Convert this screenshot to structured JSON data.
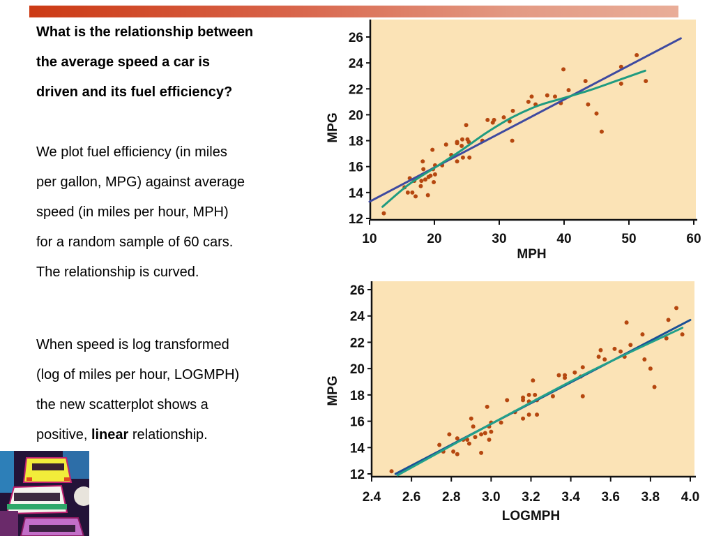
{
  "slide": {
    "question_lines": [
      "What is the relationship between",
      "the average speed a car is",
      "driven and its fuel efficiency?"
    ],
    "paragraph1_lines": [
      "We plot fuel efficiency (in miles",
      "per gallon, MPG) against average",
      "speed (in miles per hour, MPH)",
      "for a random sample of 60 cars.",
      "The relationship is curved."
    ],
    "paragraph2_lines": [
      "When speed is log transformed",
      "(log of miles per hour, LOGMPH)",
      "the new scatterplot shows a"
    ],
    "paragraph2_last": {
      "prefix": "positive, ",
      "bold": "linear",
      "suffix": " relationship."
    },
    "image_alt": "car-traffic-illustration"
  },
  "colors": {
    "plot_bg": "#fbe3b6",
    "point": "#b5470f",
    "linear_fit": "#3e4aa0",
    "curve_fit": "#1f9b80",
    "log_linear_fit": "#1a4f96",
    "log_curve_fit": "#22a08a"
  },
  "chart_data": [
    {
      "type": "scatter",
      "title": "",
      "xlabel": "MPH",
      "ylabel": "MPG",
      "xlim": [
        10,
        60
      ],
      "ylim": [
        12,
        26
      ],
      "xticks": [
        "10",
        "20",
        "30",
        "40",
        "50",
        "60"
      ],
      "yticks": [
        "12",
        "14",
        "16",
        "18",
        "20",
        "22",
        "24",
        "26"
      ],
      "grid": false,
      "points": [
        [
          12.2,
          12.4
        ],
        [
          15.4,
          14.4
        ],
        [
          15.9,
          14.0
        ],
        [
          16.2,
          15.1
        ],
        [
          16.6,
          14.0
        ],
        [
          16.9,
          14.9
        ],
        [
          17.1,
          13.7
        ],
        [
          17.9,
          14.5
        ],
        [
          18.0,
          14.9
        ],
        [
          18.2,
          16.4
        ],
        [
          18.3,
          15.8
        ],
        [
          18.6,
          15.0
        ],
        [
          19.0,
          13.8
        ],
        [
          19.1,
          15.2
        ],
        [
          19.4,
          15.3
        ],
        [
          19.7,
          17.3
        ],
        [
          19.8,
          15.8
        ],
        [
          19.9,
          14.8
        ],
        [
          20.1,
          15.4
        ],
        [
          20.1,
          16.1
        ],
        [
          21.2,
          16.1
        ],
        [
          21.8,
          17.7
        ],
        [
          22.6,
          16.9
        ],
        [
          23.5,
          17.9
        ],
        [
          23.5,
          17.8
        ],
        [
          23.5,
          16.4
        ],
        [
          24.2,
          17.6
        ],
        [
          24.3,
          18.1
        ],
        [
          24.4,
          16.7
        ],
        [
          24.9,
          19.2
        ],
        [
          25.1,
          18.1
        ],
        [
          25.3,
          17.9
        ],
        [
          25.4,
          16.7
        ],
        [
          27.4,
          18.0
        ],
        [
          28.2,
          19.6
        ],
        [
          29.0,
          19.4
        ],
        [
          29.2,
          19.6
        ],
        [
          30.7,
          19.8
        ],
        [
          31.6,
          19.5
        ],
        [
          32.0,
          18.0
        ],
        [
          32.1,
          20.3
        ],
        [
          34.5,
          21.0
        ],
        [
          35.0,
          21.4
        ],
        [
          35.6,
          20.8
        ],
        [
          37.4,
          21.5
        ],
        [
          38.6,
          21.4
        ],
        [
          39.5,
          20.9
        ],
        [
          39.9,
          23.5
        ],
        [
          40.7,
          21.9
        ],
        [
          43.3,
          22.6
        ],
        [
          43.7,
          20.8
        ],
        [
          45.0,
          20.1
        ],
        [
          45.8,
          18.7
        ],
        [
          48.8,
          22.4
        ],
        [
          48.8,
          23.7
        ],
        [
          51.2,
          24.6
        ],
        [
          52.6,
          22.6
        ]
      ],
      "series": [
        {
          "name": "linear fit",
          "type": "line",
          "x": [
            10,
            58
          ],
          "y": [
            13.3,
            25.9
          ]
        },
        {
          "name": "curve fit",
          "type": "line",
          "x": [
            12,
            16,
            20,
            24,
            28,
            32,
            36,
            40,
            44,
            48,
            52.5
          ],
          "y": [
            12.9,
            14.6,
            15.9,
            17.2,
            18.6,
            19.8,
            20.7,
            21.3,
            21.9,
            22.6,
            23.4
          ]
        }
      ]
    },
    {
      "type": "scatter",
      "title": "",
      "xlabel": "LOGMPH",
      "ylabel": "MPG",
      "xlim": [
        2.4,
        4.0
      ],
      "ylim": [
        12,
        26
      ],
      "xticks": [
        "2.4",
        "2.6",
        "2.8",
        "3.0",
        "3.2",
        "3.4",
        "3.6",
        "3.8",
        "4.0"
      ],
      "yticks": [
        "12",
        "14",
        "16",
        "18",
        "20",
        "22",
        "24",
        "26"
      ],
      "grid": false,
      "points": [
        [
          2.5,
          12.2
        ],
        [
          2.74,
          14.2
        ],
        [
          2.76,
          13.7
        ],
        [
          2.79,
          15.0
        ],
        [
          2.81,
          13.7
        ],
        [
          2.83,
          14.7
        ],
        [
          2.83,
          13.5
        ],
        [
          2.86,
          14.6
        ],
        [
          2.88,
          14.6
        ],
        [
          2.89,
          14.3
        ],
        [
          2.9,
          16.2
        ],
        [
          2.91,
          15.6
        ],
        [
          2.92,
          14.8
        ],
        [
          2.95,
          13.6
        ],
        [
          2.95,
          15.0
        ],
        [
          2.97,
          15.1
        ],
        [
          2.98,
          17.1
        ],
        [
          2.99,
          15.6
        ],
        [
          2.99,
          14.6
        ],
        [
          3.0,
          15.2
        ],
        [
          3.0,
          15.9
        ],
        [
          3.05,
          15.9
        ],
        [
          3.08,
          17.6
        ],
        [
          3.12,
          16.7
        ],
        [
          3.16,
          17.8
        ],
        [
          3.16,
          17.6
        ],
        [
          3.16,
          16.2
        ],
        [
          3.19,
          17.5
        ],
        [
          3.19,
          18.0
        ],
        [
          3.19,
          16.5
        ],
        [
          3.21,
          19.1
        ],
        [
          3.22,
          18.0
        ],
        [
          3.23,
          17.6
        ],
        [
          3.23,
          16.5
        ],
        [
          3.31,
          17.9
        ],
        [
          3.34,
          19.5
        ],
        [
          3.37,
          19.3
        ],
        [
          3.37,
          19.5
        ],
        [
          3.42,
          19.7
        ],
        [
          3.45,
          19.4
        ],
        [
          3.46,
          20.1
        ],
        [
          3.46,
          17.9
        ],
        [
          3.54,
          20.9
        ],
        [
          3.55,
          21.4
        ],
        [
          3.57,
          20.7
        ],
        [
          3.62,
          21.5
        ],
        [
          3.65,
          21.3
        ],
        [
          3.67,
          20.9
        ],
        [
          3.68,
          23.5
        ],
        [
          3.7,
          21.8
        ],
        [
          3.76,
          22.6
        ],
        [
          3.77,
          20.7
        ],
        [
          3.8,
          20.0
        ],
        [
          3.82,
          18.6
        ],
        [
          3.88,
          22.3
        ],
        [
          3.89,
          23.7
        ],
        [
          3.93,
          24.6
        ],
        [
          3.96,
          22.6
        ]
      ],
      "series": [
        {
          "name": "linear fit",
          "type": "line",
          "x": [
            2.52,
            4.0
          ],
          "y": [
            12.0,
            23.7
          ]
        },
        {
          "name": "curve fit",
          "type": "line",
          "x": [
            2.53,
            3.0,
            3.5,
            3.96
          ],
          "y": [
            11.9,
            15.8,
            19.8,
            23.1
          ]
        }
      ]
    }
  ]
}
